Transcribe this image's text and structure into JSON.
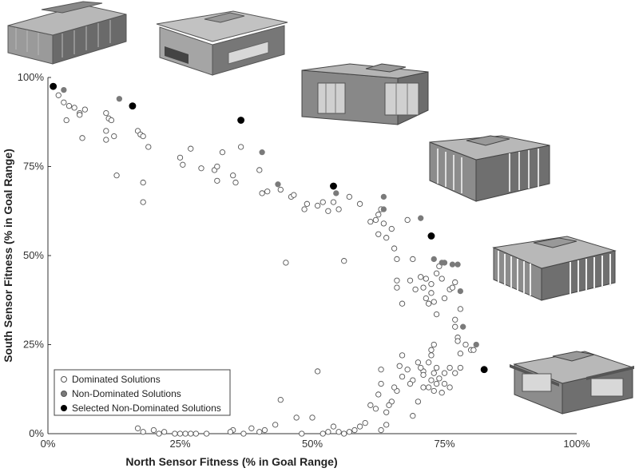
{
  "chart_data": {
    "type": "scatter",
    "xlabel": "North Sensor Fitness (% in Goal Range)",
    "ylabel": "South Sensor Fitness (% in Goal Range)",
    "xlim": [
      0,
      100
    ],
    "ylim": [
      0,
      100
    ],
    "x_ticks": [
      "0%",
      "25%",
      "50%",
      "75%",
      "100%"
    ],
    "y_ticks": [
      "0%",
      "25%",
      "50%",
      "75%",
      "100%"
    ],
    "x_tick_values": [
      0,
      25,
      50,
      75,
      100
    ],
    "y_tick_values": [
      0,
      25,
      50,
      75,
      100
    ],
    "grid": false,
    "legend_position": "bottom-left",
    "series": [
      {
        "name": "Dominated Solutions",
        "marker": "open-circle",
        "color": "#ffffff",
        "stroke": "#555555",
        "points": [
          [
            2,
            95
          ],
          [
            3,
            93
          ],
          [
            3.5,
            88
          ],
          [
            4,
            92
          ],
          [
            5,
            91.5
          ],
          [
            6,
            90
          ],
          [
            6,
            89.5
          ],
          [
            7,
            91
          ],
          [
            6.5,
            83
          ],
          [
            11,
            90
          ],
          [
            11.5,
            88.5
          ],
          [
            12,
            88
          ],
          [
            11,
            85
          ],
          [
            11,
            82.5
          ],
          [
            12.5,
            83.5
          ],
          [
            13,
            72.5
          ],
          [
            17,
            85
          ],
          [
            17.5,
            84
          ],
          [
            18,
            83.5
          ],
          [
            19,
            80.5
          ],
          [
            18,
            70.5
          ],
          [
            18,
            65
          ],
          [
            25,
            77.5
          ],
          [
            25.5,
            75.5
          ],
          [
            27,
            80
          ],
          [
            29,
            74.5
          ],
          [
            31.5,
            74
          ],
          [
            32,
            71
          ],
          [
            32,
            75
          ],
          [
            33,
            79
          ],
          [
            35,
            72.5
          ],
          [
            35.5,
            70.5
          ],
          [
            36.5,
            80.5
          ],
          [
            40,
            74
          ],
          [
            40.5,
            67.5
          ],
          [
            41.5,
            68
          ],
          [
            44,
            68.5
          ],
          [
            46,
            66.5
          ],
          [
            46.5,
            67
          ],
          [
            45,
            48
          ],
          [
            48.5,
            63
          ],
          [
            49,
            64.5
          ],
          [
            51,
            64
          ],
          [
            52,
            65
          ],
          [
            53,
            62.5
          ],
          [
            54,
            65
          ],
          [
            55,
            63
          ],
          [
            56,
            48.5
          ],
          [
            57,
            66.5
          ],
          [
            59,
            64.5
          ],
          [
            61,
            59.5
          ],
          [
            62,
            60
          ],
          [
            62.5,
            61.5
          ],
          [
            63,
            63
          ],
          [
            62.5,
            56
          ],
          [
            63.5,
            59
          ],
          [
            64,
            55
          ],
          [
            65,
            57.5
          ],
          [
            65.5,
            52
          ],
          [
            66,
            49
          ],
          [
            66,
            43
          ],
          [
            66,
            41
          ],
          [
            67,
            36.5
          ],
          [
            68,
            60
          ],
          [
            68.5,
            43
          ],
          [
            69,
            49
          ],
          [
            69.5,
            40.5
          ],
          [
            70.5,
            44
          ],
          [
            71,
            41
          ],
          [
            71.5,
            43.5
          ],
          [
            71.5,
            38
          ],
          [
            72,
            36.5
          ],
          [
            72.5,
            39.5
          ],
          [
            73,
            37
          ],
          [
            73.5,
            33.5
          ],
          [
            72.5,
            42
          ],
          [
            73.5,
            45
          ],
          [
            74,
            47
          ],
          [
            74.5,
            43.5
          ],
          [
            75,
            38
          ],
          [
            76,
            40.5
          ],
          [
            76.5,
            41
          ],
          [
            77,
            42.5
          ],
          [
            78,
            35
          ],
          [
            77,
            32
          ],
          [
            77,
            30
          ],
          [
            77.5,
            27
          ],
          [
            77.5,
            26
          ],
          [
            78,
            22.5
          ],
          [
            79,
            25
          ],
          [
            80,
            23.5
          ],
          [
            80.5,
            23.5
          ],
          [
            71,
            17.5
          ],
          [
            71,
            16.5
          ],
          [
            72,
            20
          ],
          [
            72.5,
            22
          ],
          [
            72.5,
            23.5
          ],
          [
            73,
            25
          ],
          [
            73.5,
            18.5
          ],
          [
            73,
            17
          ],
          [
            72.5,
            15
          ],
          [
            72,
            13
          ],
          [
            73,
            12
          ],
          [
            73.5,
            14
          ],
          [
            74,
            15.5
          ],
          [
            75,
            17
          ],
          [
            75,
            14
          ],
          [
            76,
            13
          ],
          [
            74.5,
            11.5
          ],
          [
            70,
            20
          ],
          [
            70.5,
            18.5
          ],
          [
            69,
            15
          ],
          [
            68.5,
            14
          ],
          [
            68,
            18
          ],
          [
            67,
            22
          ],
          [
            67,
            16
          ],
          [
            66.5,
            19
          ],
          [
            66,
            12
          ],
          [
            65.5,
            13
          ],
          [
            65,
            9
          ],
          [
            64.5,
            8
          ],
          [
            64,
            6
          ],
          [
            63,
            14
          ],
          [
            63,
            18
          ],
          [
            62.5,
            11
          ],
          [
            62,
            7
          ],
          [
            61,
            8
          ],
          [
            60,
            3
          ],
          [
            59,
            2
          ],
          [
            57,
            0.5
          ],
          [
            56,
            0
          ],
          [
            55,
            0.5
          ],
          [
            54,
            2
          ],
          [
            53,
            0.5
          ],
          [
            51,
            17.5
          ],
          [
            52,
            0
          ],
          [
            50,
            4.5
          ],
          [
            48,
            0
          ],
          [
            47,
            4.5
          ],
          [
            44,
            9.5
          ],
          [
            43,
            2.5
          ],
          [
            41,
            1
          ],
          [
            40,
            0.5
          ],
          [
            38.5,
            1.5
          ],
          [
            37,
            0
          ],
          [
            35,
            1
          ],
          [
            34.5,
            0.5
          ],
          [
            30,
            0
          ],
          [
            28,
            0
          ],
          [
            27,
            0
          ],
          [
            26,
            0
          ],
          [
            25,
            0
          ],
          [
            24,
            0
          ],
          [
            22,
            0.5
          ],
          [
            21,
            0
          ],
          [
            20,
            1
          ],
          [
            18,
            0.5
          ],
          [
            17,
            1.5
          ],
          [
            63,
            1
          ],
          [
            64,
            2.5
          ],
          [
            58,
            1
          ],
          [
            69,
            5
          ],
          [
            70,
            9
          ],
          [
            71,
            13
          ],
          [
            76,
            18.5
          ],
          [
            77,
            17
          ],
          [
            78,
            18.5
          ]
        ]
      },
      {
        "name": "Non-Dominated Solutions",
        "marker": "gray-circle",
        "color": "#7a7a7a",
        "points": [
          [
            3,
            96.5
          ],
          [
            13.5,
            94
          ],
          [
            40.5,
            79
          ],
          [
            43.5,
            70
          ],
          [
            54.5,
            67.5
          ],
          [
            63.5,
            66.5
          ],
          [
            63.5,
            63
          ],
          [
            70.5,
            60.5
          ],
          [
            73,
            49
          ],
          [
            74.5,
            48
          ],
          [
            75,
            48
          ],
          [
            76.5,
            47.5
          ],
          [
            77.5,
            47.5
          ],
          [
            78,
            40
          ],
          [
            78.5,
            30
          ],
          [
            81,
            25
          ]
        ]
      },
      {
        "name": "Selected Non-Dominated Solutions",
        "marker": "black-circle",
        "color": "#000000",
        "points": [
          [
            1,
            97.5
          ],
          [
            16,
            92
          ],
          [
            36.5,
            88
          ],
          [
            54,
            69.5
          ],
          [
            72.5,
            55.5
          ],
          [
            82.5,
            18
          ]
        ]
      }
    ]
  },
  "legend": {
    "items": [
      "Dominated Solutions",
      "Non-Dominated Solutions",
      "Selected Non-Dominated Solutions"
    ]
  },
  "building_thumbnails": [
    "building-render-1",
    "building-render-2",
    "building-render-3",
    "building-render-4",
    "building-render-5",
    "building-render-6"
  ]
}
